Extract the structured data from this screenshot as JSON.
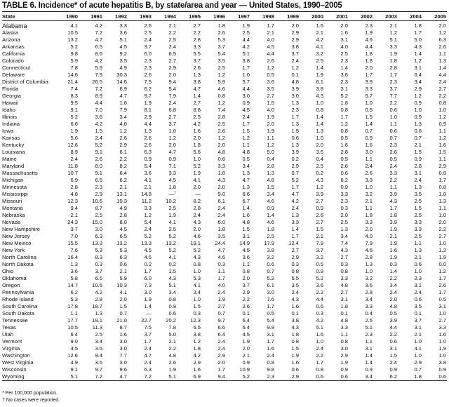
{
  "title": "TABLE 6. Incidence* of acute hepatitis B, by state/area and year — United States, 1990–2005",
  "columns": [
    "State",
    "1990",
    "1991",
    "1992",
    "1993",
    "1994",
    "1995",
    "1996",
    "1997",
    "1998",
    "1999",
    "2000",
    "2001",
    "2002",
    "2003",
    "2004",
    "2005"
  ],
  "rows": [
    [
      "Alabama",
      "4.1",
      "4.2",
      "3.3",
      "2.6",
      "2.1",
      "2.7",
      "1.8",
      "1.9",
      "1.7",
      "2.0",
      "1.6",
      "2.0",
      "2.3",
      "2.1",
      "1.8",
      "2.0"
    ],
    [
      "Alaska",
      "10.5",
      "7.2",
      "3.6",
      "2.5",
      "2.2",
      "2.2",
      "2.6",
      "2.5",
      "2.1",
      "2.9",
      "2.1",
      "1.6",
      "1.9",
      "1.2",
      "1.7",
      "1.2"
    ],
    [
      "Arizona",
      "13.2",
      "4.7",
      "5.1",
      "2.4",
      "2.5",
      "2.8",
      "5.3",
      "4.4",
      "4.0",
      "2.9",
      "4.2",
      "3.1",
      "4.6",
      "5.1",
      "5.0",
      "6.3"
    ],
    [
      "Arkansas",
      "5.2",
      "6.5",
      "4.5",
      "3.7",
      "2.4",
      "3.3",
      "3.7",
      "4.2",
      "4.5",
      "3.8",
      "4.1",
      "4.0",
      "4.4",
      "3.3",
      "4.3",
      "2.6"
    ],
    [
      "California",
      "9.8",
      "8.6",
      "9.2",
      "6.0",
      "6.5",
      "5.5",
      "5.4",
      "5.1",
      "4.4",
      "3.7",
      "3.2",
      "2.5",
      "1.8",
      "1.9",
      "1.4",
      "1.1"
    ],
    [
      "Colorado",
      "5.9",
      "4.2",
      "3.5",
      "2.3",
      "2.7",
      "3.7",
      "3.5",
      "3.8",
      "2.6",
      "2.4",
      "2.5",
      "2.3",
      "1.8",
      "1.8",
      "1.2",
      "1.3"
    ],
    [
      "Connecticut",
      "7.8",
      "5.9",
      "4.9",
      "2.3",
      "2.9",
      "2.6",
      "2.5",
      "1.7",
      "1.2",
      "1.2",
      "1.4",
      "1.4",
      "2.0",
      "2.8",
      "3.1",
      "1.4"
    ],
    [
      "Delaware",
      "14.6",
      "7.9",
      "30.3",
      "2.6",
      "2.0",
      "1.3",
      "1.2",
      "1.0",
      "0.5",
      "0.1",
      "1.9",
      "3.6",
      "1.7",
      "1.7",
      "6.4",
      "4.4"
    ],
    [
      "District of Columbia",
      "21.4",
      "26.5",
      "14.6",
      "7.5",
      "9.4",
      "3.8",
      "5.9",
      "5.7",
      "3.6",
      "4.8",
      "6.1",
      "2.3",
      "3.9",
      "2.3",
      "3.4",
      "2.4"
    ],
    [
      "Florida",
      "7.4",
      "7.2",
      "6.9",
      "6.2",
      "5.4",
      "4.7",
      "4.6",
      "4.4",
      "3.5",
      "3.9",
      "3.8",
      "3.1",
      "3.3",
      "3.7",
      "2.9",
      "2.7"
    ],
    [
      "Georgia",
      "8.3",
      "8.9",
      "4.7",
      "9.7",
      "7.9",
      "1.4",
      "0.8",
      "3.0",
      "2.7",
      "3.0",
      "4.3",
      "5.2",
      "5.7",
      "7.7",
      "1.2",
      "2.2"
    ],
    [
      "Hawaii",
      "9.5",
      "4.4",
      "1.6",
      "1.9",
      "2.4",
      "2.7",
      "1.2",
      "0.9",
      "1.5",
      "1.3",
      "1.0",
      "1.8",
      "1.0",
      "2.2",
      "0.9",
      "0.8"
    ],
    [
      "Idaho",
      "9.1",
      "7.0",
      "7.9",
      "8.1",
      "6.8",
      "8.8",
      "7.4",
      "4.5",
      "4.0",
      "2.3",
      "0.8",
      "0.8",
      "0.5",
      "0.6",
      "1.0",
      "1.0"
    ],
    [
      "Illinois",
      "5.2",
      "3.6",
      "3.4",
      "2.9",
      "2.7",
      "2.5",
      "2.8",
      "2.4",
      "1.9",
      "1.7",
      "1.4",
      "1.7",
      "1.5",
      "1.0",
      "0.9",
      "1.2"
    ],
    [
      "Indiana",
      "6.6",
      "4.2",
      "4.0",
      "4.4",
      "3.7",
      "4.2",
      "2.5",
      "1.7",
      "2.0",
      "1.3",
      "1.4",
      "1.2",
      "1.4",
      "1.1",
      "1.3",
      "0.9"
    ],
    [
      "Iowa",
      "1.9",
      "1.5",
      "1.2",
      "1.3",
      "1.0",
      "1.6",
      "2.6",
      "1.5",
      "1.9",
      "1.5",
      "1.3",
      "0.8",
      "0.7",
      "0.6",
      "0.6",
      "1.1"
    ],
    [
      "Kansas",
      "5.6",
      "2.4",
      "2.6",
      "2.6",
      "1.2",
      "2.0",
      "1.2",
      "1.2",
      "1.1",
      "0.6",
      "1.0",
      "0.5",
      "0.9",
      "0.7",
      "0.7",
      "1.2"
    ],
    [
      "Kentucky",
      "12.6",
      "5.2",
      "2.9",
      "2.6",
      "2.0",
      "1.8",
      "2.0",
      "1.1",
      "1.2",
      "1.3",
      "2.0",
      "1.6",
      "1.6",
      "2.3",
      "2.1",
      "1.6"
    ],
    [
      "Louisiana",
      "8.9",
      "9.1",
      "6.1",
      "6.3",
      "4.7",
      "5.6",
      "4.8",
      "4.8",
      "5.0",
      "3.9",
      "3.5",
      "2.8",
      "3.0",
      "2.6",
      "1.5",
      "1.5"
    ],
    [
      "Maine",
      "2.4",
      "2.6",
      "2.2",
      "0.9",
      "0.9",
      "1.0",
      "0.6",
      "0.5",
      "0.4",
      "0.2",
      "0.4",
      "0.5",
      "1.1",
      "0.5",
      "0.9",
      "1.1"
    ],
    [
      "Maryland",
      "11.8",
      "8.0",
      "8.2",
      "5.4",
      "7.1",
      "5.2",
      "3.3",
      "3.4",
      "2.8",
      "2.9",
      "2.5",
      "2.6",
      "2.4",
      "2.4",
      "2.8",
      "2.9"
    ],
    [
      "Massachusetts",
      "10.7",
      "9.1",
      "6.4",
      "3.6",
      "3.3",
      "1.9",
      "1.8",
      "1.3",
      "1.3",
      "0.7",
      "0.2",
      "0.6",
      "2.6",
      "3.3",
      "3.1",
      "0.8"
    ],
    [
      "Michigan",
      "6.9",
      "6.5",
      "6.2",
      "4.1",
      "4.5",
      "4.1",
      "4.3",
      "4.7",
      "4.8",
      "5.2",
      "4.3",
      "6.2",
      "3.3",
      "2.2",
      "2.4",
      "1.7"
    ],
    [
      "Minnesota",
      "2.8",
      "2.3",
      "2.1",
      "2.1",
      "1.8",
      "2.0",
      "2.0",
      "1.3",
      "1.5",
      "1.7",
      "1.2",
      "0.9",
      "1.0",
      "1.1",
      "1.3",
      "0.8"
    ],
    [
      "Mississippi",
      "4.8",
      "2.9",
      "13.1",
      "14.8",
      "—†",
      "—",
      "9.0",
      "6.6",
      "3.4",
      "4.7",
      "3.9",
      "3.3",
      "3.2",
      "3.9",
      "3.5",
      "1.8"
    ],
    [
      "Missouri",
      "12.3",
      "10.6",
      "10.3",
      "11.2",
      "10.2",
      "8.2",
      "6.1",
      "6.7",
      "4.6",
      "4.2",
      "2.7",
      "2.3",
      "2.1",
      "4.3",
      "2.5",
      "1.3"
    ],
    [
      "Montana",
      "9.4",
      "8.7",
      "4.9",
      "3.3",
      "2.5",
      "2.8",
      "2.4",
      "1.4",
      "0.9",
      "2.4",
      "0.9",
      "0.3",
      "1.1",
      "1.7",
      "1.5",
      "1.1"
    ],
    [
      "Nebraska",
      "2.1",
      "2.5",
      "2.8",
      "1.2",
      "1.9",
      "2.4",
      "2.4",
      "1.6",
      "1.4",
      "1.3",
      "2.6",
      "2.0",
      "1.8",
      "1.8",
      "2.5",
      "1.0"
    ],
    [
      "Nevada",
      "24.3",
      "15.0",
      "8.0",
      "5.4",
      "4.1",
      "4.3",
      "6.0",
      "4.8",
      "4.6",
      "3.3",
      "2.7",
      "2.5",
      "3.3",
      "3.9",
      "3.3",
      "2.0"
    ],
    [
      "New Hampshire",
      "3.7",
      "3.0",
      "4.5",
      "2.4",
      "2.5",
      "2.0",
      "1.8",
      "1.5",
      "1.8",
      "1.4",
      "1.5",
      "1.3",
      "2.0",
      "1.9",
      "3.3",
      "2.2"
    ],
    [
      "New Jersey",
      "7.0",
      "6.3",
      "6.5",
      "5.2",
      "5.2",
      "4.6",
      "3.5",
      "3.1",
      "2.5",
      "1.7",
      "2.1",
      "3.4",
      "4.0",
      "2.1",
      "2.5",
      "2.7"
    ],
    [
      "New Mexico",
      "15.5",
      "13.3",
      "13.2",
      "13.3",
      "13.2",
      "19.1",
      "24.4",
      "14.9",
      "17.9",
      "12.4",
      "7.9",
      "7.4",
      "7.9",
      "1.9",
      "1.1",
      "1.0"
    ],
    [
      "New York",
      "7.6",
      "5.3",
      "5.3",
      "4.5",
      "5.2",
      "5.2",
      "4.7",
      "4.5",
      "3.8",
      "2.7",
      "3.7",
      "4.3",
      "4.6",
      "1.6",
      "1.3",
      "1.2"
    ],
    [
      "North Carolina",
      "16.4",
      "8.3",
      "6.3",
      "4.5",
      "4.1",
      "4.3",
      "4.6",
      "3.6",
      "3.2",
      "2.9",
      "3.2",
      "2.7",
      "2.8",
      "1.9",
      "2.1",
      "1.9"
    ],
    [
      "North Dakota",
      "1.3",
      "0.3",
      "0.6",
      "0.2",
      "0.2",
      "0.8",
      "0.3",
      "1.1",
      "0.6",
      "0.3",
      "0.5",
      "0.3",
      "1.3",
      "0.3",
      "0.6",
      "0.0"
    ],
    [
      "Ohio",
      "3.6",
      "3.7",
      "2.1",
      "1.7",
      "1.5",
      "1.0",
      "1.1",
      "0.8",
      "0.7",
      "0.8",
      "0.9",
      "0.8",
      "1.0",
      "1.4",
      "1.0",
      "1.2"
    ],
    [
      "Oklahoma",
      "5.8",
      "6.5",
      "5.9",
      "6.0",
      "4.3",
      "5.3",
      "1.7",
      "2.0",
      "5.2",
      "5.5",
      "5.2",
      "3.3",
      "3.2",
      "2.2",
      "2.3",
      "1.7"
    ],
    [
      "Oregon",
      "14.7",
      "10.6",
      "10.3",
      "7.3",
      "5.1",
      "4.1",
      "4.0",
      "3.7",
      "6.1",
      "3.5",
      "3.6",
      "4.8",
      "3.6",
      "3.4",
      "3.1",
      "2.6"
    ],
    [
      "Pennsylvania",
      "6.2",
      "4.2",
      "4.1",
      "3.0",
      "3.4",
      "2.4",
      "2.4",
      "2.9",
      "3.0",
      "2.4",
      "2.2",
      "2.7",
      "2.8",
      "2.4",
      "2.4",
      "1.7"
    ],
    [
      "Rhode Island",
      "5.3",
      "2.8",
      "2.0",
      "1.9",
      "0.8",
      "1.0",
      "1.9",
      "2.2",
      "7.6",
      "4.3",
      "4.4",
      "3.1",
      "3.4",
      "2.0",
      "0.6",
      "0.5"
    ],
    [
      "South Carolina",
      "17.8",
      "18.7",
      "1.5",
      "1.4",
      "0.9",
      "1.5",
      "2.7",
      "2.6",
      "1.7",
      "1.6",
      "0.6",
      "1.8",
      "3.3",
      "4.8",
      "3.5",
      "3.1"
    ],
    [
      "South Dakota",
      "1.1",
      "1.3",
      "0.7",
      "—",
      "0.6",
      "0.3",
      "0.7",
      "0.1",
      "0.5",
      "0.1",
      "0.3",
      "0.1",
      "0.4",
      "0.5",
      "0.1",
      "1.0"
    ],
    [
      "Tennessee",
      "17.7",
      "19.1",
      "21.0",
      "22.7",
      "20.2",
      "12.3",
      "9.7",
      "6.4",
      "5.4",
      "3.8",
      "4.2",
      "4.8",
      "2.5",
      "3.9",
      "3.7",
      "2.7"
    ],
    [
      "Texas",
      "10.5",
      "11.3",
      "8.7",
      "7.5",
      "7.8",
      "6.5",
      "6.6",
      "6.4",
      "9.9",
      "4.3",
      "5.1",
      "3.3",
      "5.1",
      "4.4",
      "3.1",
      "3.3"
    ],
    [
      "Utah",
      "6.4",
      "2.5",
      "1.6",
      "3.7",
      "5.0",
      "3.8",
      "6.4",
      "4.5",
      "3.1",
      "1.8",
      "1.6",
      "1.1",
      "2.3",
      "2.2",
      "2.1",
      "1.6"
    ],
    [
      "Vermont",
      "9.0",
      "3.4",
      "3.0",
      "1.7",
      "2.1",
      "1.2",
      "2.4",
      "1.9",
      "1.7",
      "0.8",
      "1.0",
      "0.8",
      "1.1",
      "0.6",
      "1.0",
      "1.0"
    ],
    [
      "Virginia",
      "4.5",
      "3.5",
      "3.0",
      "2.4",
      "2.2",
      "1.8",
      "2.4",
      "2.0",
      "1.6",
      "1.5",
      "2.4",
      "3.0",
      "3.1",
      "3.1",
      "4.1",
      "1.9"
    ],
    [
      "Washington",
      "12.6",
      "9.4",
      "7.7",
      "4.7",
      "4.8",
      "4.2",
      "2.9",
      "2.1",
      "2.4",
      "1.9",
      "2.2",
      "2.9",
      "1.4",
      "1.5",
      "1.0",
      "1.0"
    ],
    [
      "West Virginia",
      "4.9",
      "3.6",
      "3.0",
      "2.4",
      "2.6",
      "2.9",
      "2.0",
      "0.9",
      "0.8",
      "1.6",
      "1.7",
      "1.9",
      "1.4",
      "2.4",
      "2.9",
      "3.8"
    ],
    [
      "Wisconsin",
      "9.1",
      "9.7",
      "9.6",
      "6.3",
      "1.9",
      "1.6",
      "1.7",
      "10.9",
      "9.8",
      "0.6",
      "0.8",
      "0.9",
      "0.9",
      "0.9",
      "0.7",
      "0.9"
    ],
    [
      "Wyoming",
      "5.1",
      "7.2",
      "4.7",
      "7.2",
      "5.1",
      "6.9",
      "9.4",
      "5.2",
      "2.3",
      "2.9",
      "0.6",
      "0.6",
      "3.4",
      "6.2",
      "1.8",
      "0.6"
    ]
  ],
  "footnotes": [
    "* Per 100,000 population.",
    "† No cases were reported."
  ]
}
